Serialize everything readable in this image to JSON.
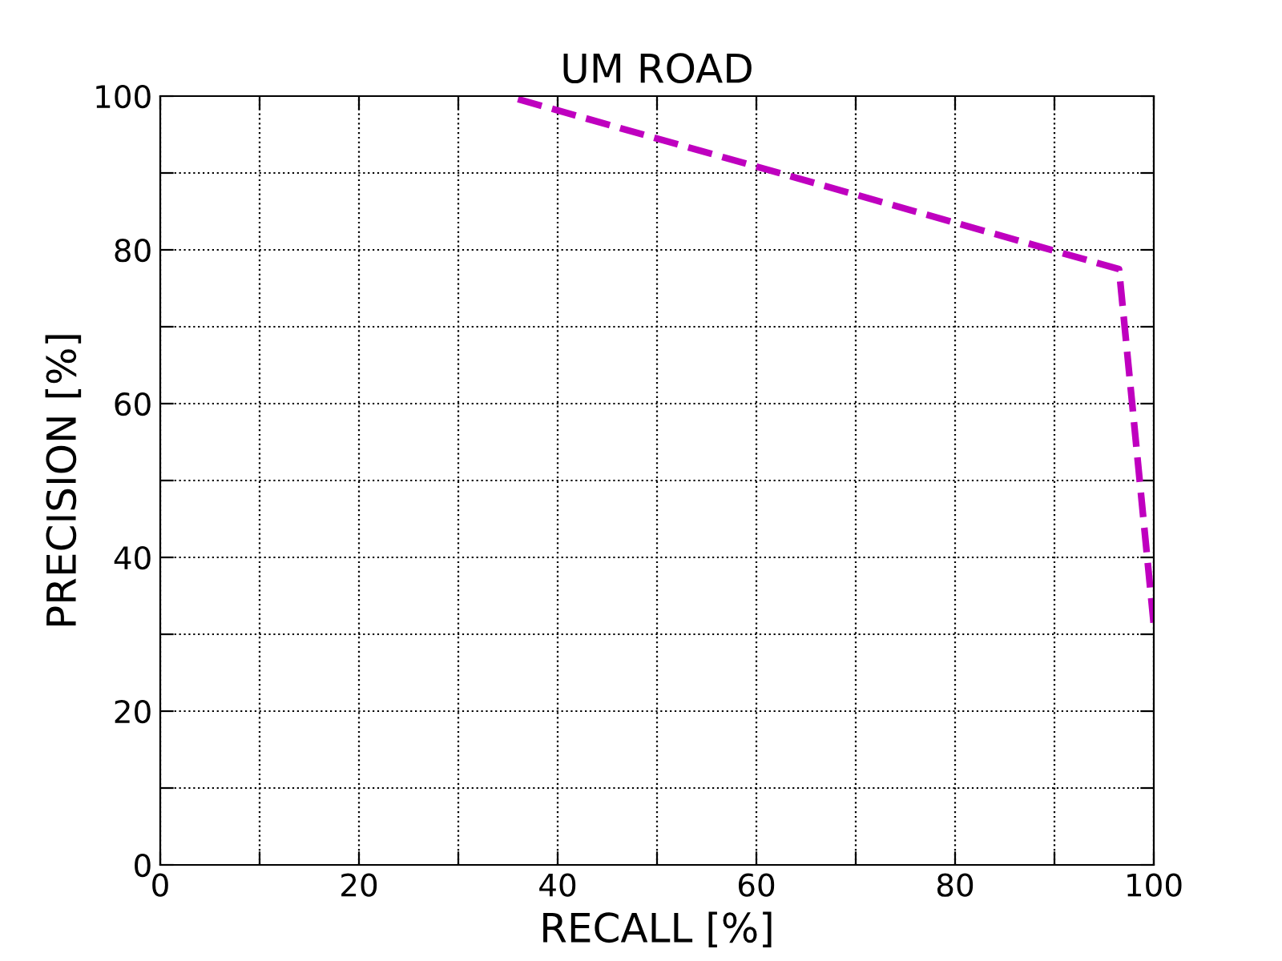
{
  "chart_data": {
    "type": "line",
    "title": "UM ROAD",
    "xlabel": "RECALL [%]",
    "ylabel": "PRECISION [%]",
    "x": [
      36,
      96.5,
      100
    ],
    "series": [
      {
        "color": "#bf00bf",
        "values": [
          99.6,
          77.5,
          31.2
        ]
      }
    ],
    "line_style": "dashed",
    "marker": "none",
    "grid": true,
    "xlim": [
      0,
      100
    ],
    "ylim": [
      0,
      100
    ],
    "xticks": [
      0,
      {
        "value": 10,
        "label": null
      },
      20,
      {
        "value": 30,
        "label": null
      },
      40,
      {
        "value": 50,
        "label": null
      },
      60,
      {
        "value": 70,
        "label": null
      },
      80,
      {
        "value": 90,
        "label": null
      },
      100
    ],
    "yticks": [
      0,
      {
        "value": 10,
        "label": null
      },
      20,
      {
        "value": 30,
        "label": null
      },
      40,
      {
        "value": 50,
        "label": null
      },
      60,
      {
        "value": 70,
        "label": null
      },
      80,
      {
        "value": 90,
        "label": null
      },
      100
    ]
  }
}
